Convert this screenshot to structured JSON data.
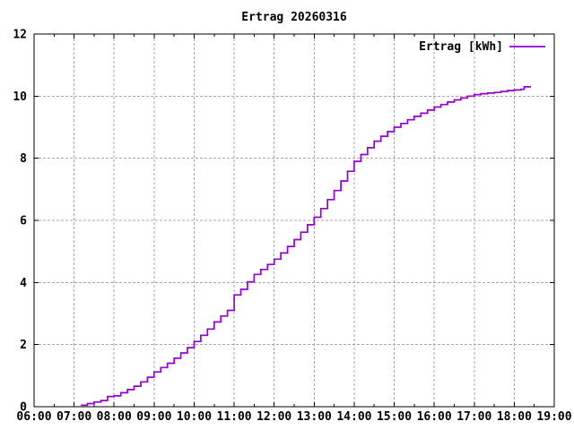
{
  "chart_data": {
    "type": "line",
    "line_style": "steps",
    "title": "Ertrag 20260316",
    "xlabel": "",
    "ylabel": "",
    "x_axis": {
      "tick_labels": [
        "06:00",
        "07:00",
        "08:00",
        "09:00",
        "10:00",
        "11:00",
        "12:00",
        "13:00",
        "14:00",
        "15:00",
        "16:00",
        "17:00",
        "18:00",
        "19:00"
      ],
      "range_hours": [
        6,
        19
      ],
      "minor_tick_every_hours": 0.5
    },
    "y_axis": {
      "tick_labels": [
        "0",
        "2",
        "4",
        "6",
        "8",
        "10",
        "12"
      ],
      "ticks": [
        0,
        2,
        4,
        6,
        8,
        10,
        12
      ],
      "range": [
        0,
        12
      ]
    },
    "grid": {
      "show": true,
      "color": "#a8a8a8",
      "dash": "3,2"
    },
    "legend": {
      "position": "top-right-inside",
      "entries": [
        {
          "label": "Ertrag [kWh]",
          "color": "#9400d3"
        }
      ]
    },
    "colors": {
      "background": "#ffffff",
      "axis": "#000000",
      "text": "#000000",
      "line": "#9400d3"
    },
    "series": [
      {
        "name": "Ertrag [kWh]",
        "color": "#9400d3",
        "points": [
          [
            "07:10",
            0.05
          ],
          [
            "07:20",
            0.1
          ],
          [
            "07:30",
            0.15
          ],
          [
            "07:40",
            0.2
          ],
          [
            "07:50",
            0.33
          ],
          [
            "08:00",
            0.35
          ],
          [
            "08:10",
            0.45
          ],
          [
            "08:20",
            0.55
          ],
          [
            "08:30",
            0.66
          ],
          [
            "08:40",
            0.8
          ],
          [
            "08:50",
            0.95
          ],
          [
            "09:00",
            1.12
          ],
          [
            "09:10",
            1.26
          ],
          [
            "09:20",
            1.4
          ],
          [
            "09:30",
            1.56
          ],
          [
            "09:40",
            1.73
          ],
          [
            "09:50",
            1.9
          ],
          [
            "10:00",
            2.1
          ],
          [
            "10:10",
            2.3
          ],
          [
            "10:20",
            2.5
          ],
          [
            "10:30",
            2.73
          ],
          [
            "10:40",
            2.92
          ],
          [
            "10:50",
            3.1
          ],
          [
            "11:00",
            3.6
          ],
          [
            "11:10",
            3.78
          ],
          [
            "11:20",
            4.02
          ],
          [
            "11:30",
            4.26
          ],
          [
            "11:40",
            4.42
          ],
          [
            "11:50",
            4.58
          ],
          [
            "12:00",
            4.75
          ],
          [
            "12:10",
            4.95
          ],
          [
            "12:20",
            5.16
          ],
          [
            "12:30",
            5.38
          ],
          [
            "12:40",
            5.62
          ],
          [
            "12:50",
            5.86
          ],
          [
            "13:00",
            6.1
          ],
          [
            "13:10",
            6.38
          ],
          [
            "13:20",
            6.67
          ],
          [
            "13:30",
            6.96
          ],
          [
            "13:40",
            7.27
          ],
          [
            "13:50",
            7.58
          ],
          [
            "14:00",
            7.9
          ],
          [
            "14:10",
            8.12
          ],
          [
            "14:20",
            8.34
          ],
          [
            "14:30",
            8.55
          ],
          [
            "14:40",
            8.71
          ],
          [
            "14:50",
            8.86
          ],
          [
            "15:00",
            9.0
          ],
          [
            "15:10",
            9.12
          ],
          [
            "15:20",
            9.24
          ],
          [
            "15:30",
            9.35
          ],
          [
            "15:40",
            9.45
          ],
          [
            "15:50",
            9.55
          ],
          [
            "16:00",
            9.65
          ],
          [
            "16:10",
            9.73
          ],
          [
            "16:20",
            9.81
          ],
          [
            "16:30",
            9.88
          ],
          [
            "16:40",
            9.94
          ],
          [
            "16:50",
            10.0
          ],
          [
            "17:00",
            10.05
          ],
          [
            "17:10",
            10.08
          ],
          [
            "17:20",
            10.1
          ],
          [
            "17:30",
            10.12
          ],
          [
            "17:40",
            10.15
          ],
          [
            "17:50",
            10.18
          ],
          [
            "18:00",
            10.2
          ],
          [
            "18:10",
            10.22
          ],
          [
            "18:15",
            10.3
          ],
          [
            "18:25",
            10.3
          ]
        ]
      }
    ]
  }
}
